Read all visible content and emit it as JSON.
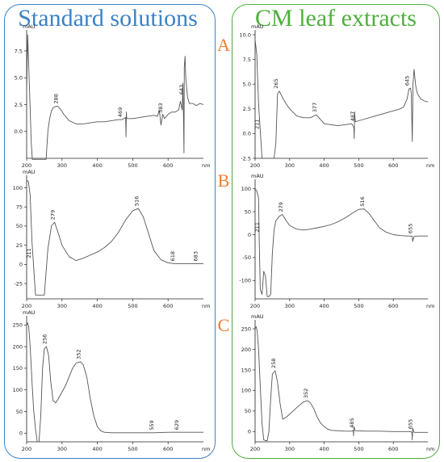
{
  "headings": {
    "left": "Standard solutions",
    "right": "CM leaf extracts"
  },
  "row_letters": [
    "A",
    "B",
    "C"
  ],
  "colors": {
    "left_accent": "#3b82c6",
    "right_accent": "#4daf3b",
    "letter": "#ed7d31",
    "trace": "#555555",
    "axis": "#222222"
  },
  "chart_data": [
    {
      "id": "A-standard",
      "type": "line",
      "ylabel": "mAU",
      "xlabel": "nm",
      "xlim": [
        200,
        700
      ],
      "ylim": [
        -2.5,
        9
      ],
      "xticks": [
        200,
        300,
        400,
        500,
        600
      ],
      "yticks": [
        7.5,
        5.0,
        2.5,
        0.0
      ],
      "x": [
        200,
        203,
        207,
        210,
        213,
        216,
        220,
        225,
        230,
        235,
        240,
        245,
        250,
        255,
        260,
        265,
        270,
        275,
        280,
        288,
        295,
        305,
        320,
        340,
        360,
        380,
        400,
        420,
        440,
        460,
        470,
        480,
        481,
        482,
        483,
        485,
        500,
        520,
        540,
        560,
        570,
        575,
        580,
        585,
        590,
        600,
        610,
        620,
        630,
        635,
        640,
        642,
        644,
        645,
        646,
        648,
        650,
        655,
        660,
        670,
        680,
        690,
        700
      ],
      "y": [
        3.5,
        9.0,
        5.0,
        2.0,
        -1.0,
        -2.6,
        -2.6,
        -2.6,
        -2.6,
        -2.6,
        -2.6,
        -2.6,
        -2.6,
        -2.6,
        0.0,
        1.2,
        1.9,
        2.2,
        2.3,
        2.35,
        2.1,
        1.6,
        1.0,
        0.7,
        0.7,
        0.8,
        0.9,
        0.9,
        1.0,
        1.1,
        1.1,
        1.3,
        -0.5,
        1.8,
        1.2,
        1.2,
        1.2,
        1.3,
        1.4,
        1.5,
        1.4,
        2.0,
        0.6,
        1.6,
        1.2,
        1.6,
        1.8,
        1.8,
        2.0,
        2.8,
        2.0,
        4.5,
        0.5,
        -2.0,
        6.0,
        7.0,
        5.0,
        3.2,
        2.6,
        2.6,
        2.4,
        2.6,
        2.5
      ],
      "peak_labels": [
        {
          "x": 288,
          "y": 2.35,
          "label": "288"
        },
        {
          "x": 469,
          "y": 1.1,
          "label": "469"
        },
        {
          "x": 583,
          "y": 1.5,
          "label": "583"
        },
        {
          "x": 643,
          "y": 3.2,
          "label": "643"
        }
      ]
    },
    {
      "id": "A-leaf",
      "type": "line",
      "ylabel": "mAU",
      "xlabel": "nm",
      "xlim": [
        200,
        700
      ],
      "ylim": [
        -2.5,
        10
      ],
      "xticks": [
        200,
        300,
        400,
        500,
        600
      ],
      "yticks": [
        10.0,
        7.5,
        5.0,
        2.5,
        0.0,
        -2.5
      ],
      "x": [
        200,
        205,
        210,
        215,
        220,
        225,
        230,
        235,
        240,
        245,
        250,
        255,
        260,
        265,
        270,
        280,
        290,
        300,
        320,
        340,
        360,
        377,
        390,
        400,
        420,
        440,
        460,
        480,
        486,
        487,
        488,
        490,
        500,
        520,
        540,
        560,
        580,
        600,
        620,
        630,
        640,
        645,
        650,
        652,
        655,
        657,
        660,
        665,
        670,
        680,
        690,
        700
      ],
      "y": [
        9.5,
        8.0,
        3.0,
        0.3,
        -2.5,
        -2.5,
        -2.5,
        -2.5,
        -2.5,
        -2.5,
        -2.5,
        -2.5,
        -1.0,
        4.0,
        4.3,
        3.6,
        3.0,
        2.5,
        1.8,
        1.6,
        1.6,
        1.9,
        1.4,
        1.0,
        0.9,
        0.8,
        0.9,
        1.0,
        0.6,
        -0.5,
        2.2,
        1.2,
        1.3,
        1.5,
        1.7,
        1.9,
        2.1,
        2.3,
        2.5,
        2.7,
        3.5,
        4.5,
        4.6,
        4.0,
        -0.8,
        5.0,
        6.5,
        4.8,
        4.0,
        3.5,
        3.3,
        3.2
      ],
      "peak_labels": [
        {
          "x": 211,
          "y": 0.2,
          "label": "211"
        },
        {
          "x": 265,
          "y": 4.3,
          "label": "265"
        },
        {
          "x": 377,
          "y": 1.9,
          "label": "377"
        },
        {
          "x": 487,
          "y": 1.0,
          "label": "487"
        },
        {
          "x": 645,
          "y": 4.6,
          "label": "645"
        }
      ]
    },
    {
      "id": "B-standard",
      "type": "line",
      "ylabel": "mAU",
      "xlabel": "nm",
      "xlim": [
        200,
        700
      ],
      "ylim": [
        -45,
        110
      ],
      "xticks": [
        200,
        300,
        400,
        500,
        600
      ],
      "yticks": [
        100,
        75,
        50,
        25,
        0,
        -25
      ],
      "x": [
        200,
        205,
        210,
        215,
        220,
        225,
        230,
        235,
        240,
        250,
        260,
        270,
        279,
        290,
        300,
        320,
        340,
        360,
        380,
        400,
        420,
        440,
        460,
        480,
        500,
        516,
        530,
        545,
        560,
        580,
        600,
        618,
        640,
        660,
        683,
        700
      ],
      "y": [
        110,
        108,
        90,
        30,
        -5,
        -40,
        -40,
        -40,
        -40,
        -40,
        20,
        50,
        55,
        40,
        25,
        10,
        5,
        8,
        12,
        16,
        22,
        30,
        42,
        58,
        70,
        73,
        62,
        40,
        18,
        6,
        2,
        1,
        1,
        1,
        1,
        1
      ],
      "peak_labels": [
        {
          "x": 211,
          "y": 5,
          "label": "211"
        },
        {
          "x": 279,
          "y": 55,
          "label": "279"
        },
        {
          "x": 516,
          "y": 73,
          "label": "516"
        },
        {
          "x": 618,
          "y": 1,
          "label": "618"
        },
        {
          "x": 683,
          "y": 1,
          "label": "683"
        }
      ]
    },
    {
      "id": "B-leaf",
      "type": "line",
      "ylabel": "mAU",
      "xlabel": "nm",
      "xlim": [
        200,
        700
      ],
      "ylim": [
        -140,
        110
      ],
      "xticks": [
        200,
        300,
        400,
        500,
        600
      ],
      "yticks": [
        100,
        50,
        0,
        -50,
        -100
      ],
      "x": [
        200,
        205,
        210,
        212,
        215,
        220,
        225,
        230,
        235,
        240,
        245,
        250,
        255,
        260,
        270,
        279,
        290,
        300,
        320,
        340,
        360,
        380,
        400,
        420,
        440,
        460,
        480,
        500,
        516,
        530,
        545,
        560,
        580,
        600,
        620,
        640,
        650,
        655,
        656,
        660,
        670,
        680,
        700
      ],
      "y": [
        100,
        95,
        80,
        -10,
        -120,
        -130,
        -80,
        -90,
        -135,
        -135,
        -130,
        -40,
        10,
        30,
        40,
        44,
        30,
        20,
        12,
        10,
        12,
        15,
        18,
        22,
        28,
        36,
        46,
        55,
        56,
        46,
        30,
        15,
        5,
        0,
        -2,
        -3,
        -3,
        -4,
        -15,
        -4,
        -3,
        -3,
        -3
      ],
      "peak_labels": [
        {
          "x": 211,
          "y": 0,
          "label": "211"
        },
        {
          "x": 279,
          "y": 44,
          "label": "279"
        },
        {
          "x": 516,
          "y": 56,
          "label": "516"
        },
        {
          "x": 655,
          "y": -3,
          "label": "655"
        }
      ]
    },
    {
      "id": "C-standard",
      "type": "line",
      "ylabel": "mAU",
      "xlabel": "nm",
      "xlim": [
        200,
        700
      ],
      "ylim": [
        -20,
        260
      ],
      "xticks": [
        200,
        300,
        400,
        500,
        600
      ],
      "yticks": [
        250,
        200,
        150,
        100,
        50,
        0
      ],
      "x": [
        200,
        203,
        206,
        210,
        215,
        220,
        225,
        230,
        235,
        240,
        245,
        250,
        256,
        262,
        268,
        275,
        282,
        290,
        300,
        310,
        320,
        330,
        340,
        352,
        360,
        370,
        380,
        390,
        400,
        410,
        420,
        440,
        480,
        520,
        559,
        600,
        629,
        650,
        700
      ],
      "y": [
        250,
        255,
        245,
        200,
        120,
        50,
        10,
        -20,
        -20,
        40,
        150,
        195,
        200,
        180,
        120,
        75,
        70,
        80,
        95,
        110,
        130,
        150,
        162,
        165,
        158,
        130,
        80,
        40,
        15,
        5,
        2,
        1,
        1,
        1,
        1,
        2,
        2,
        2,
        2
      ],
      "peak_labels": [
        {
          "x": 256,
          "y": 200,
          "label": "256"
        },
        {
          "x": 352,
          "y": 165,
          "label": "352"
        },
        {
          "x": 559,
          "y": 1,
          "label": "559"
        },
        {
          "x": 629,
          "y": 2,
          "label": "629"
        }
      ]
    },
    {
      "id": "C-leaf",
      "type": "line",
      "ylabel": "mAU",
      "xlabel": "nm",
      "xlim": [
        200,
        700
      ],
      "ylim": [
        -25,
        260
      ],
      "xticks": [
        200,
        300,
        400,
        500,
        600
      ],
      "yticks": [
        250,
        200,
        150,
        100,
        50,
        0
      ],
      "x": [
        200,
        203,
        206,
        210,
        215,
        220,
        225,
        230,
        235,
        240,
        245,
        250,
        258,
        265,
        272,
        280,
        290,
        300,
        310,
        320,
        330,
        340,
        352,
        360,
        370,
        380,
        390,
        400,
        410,
        420,
        440,
        460,
        480,
        484,
        485,
        486,
        490,
        520,
        560,
        600,
        640,
        650,
        654,
        655,
        656,
        660,
        700
      ],
      "y": [
        250,
        255,
        245,
        200,
        110,
        20,
        -20,
        -22,
        -22,
        0,
        80,
        140,
        148,
        120,
        70,
        30,
        35,
        42,
        50,
        58,
        65,
        72,
        75,
        70,
        55,
        35,
        20,
        12,
        6,
        3,
        2,
        1,
        1,
        3,
        -10,
        12,
        2,
        1,
        1,
        0,
        0,
        0,
        -2,
        -20,
        8,
        -2,
        -2
      ],
      "peak_labels": [
        {
          "x": 258,
          "y": 148,
          "label": "258"
        },
        {
          "x": 352,
          "y": 75,
          "label": "352"
        },
        {
          "x": 485,
          "y": 3,
          "label": "485"
        },
        {
          "x": 655,
          "y": 0,
          "label": "655"
        }
      ]
    }
  ]
}
